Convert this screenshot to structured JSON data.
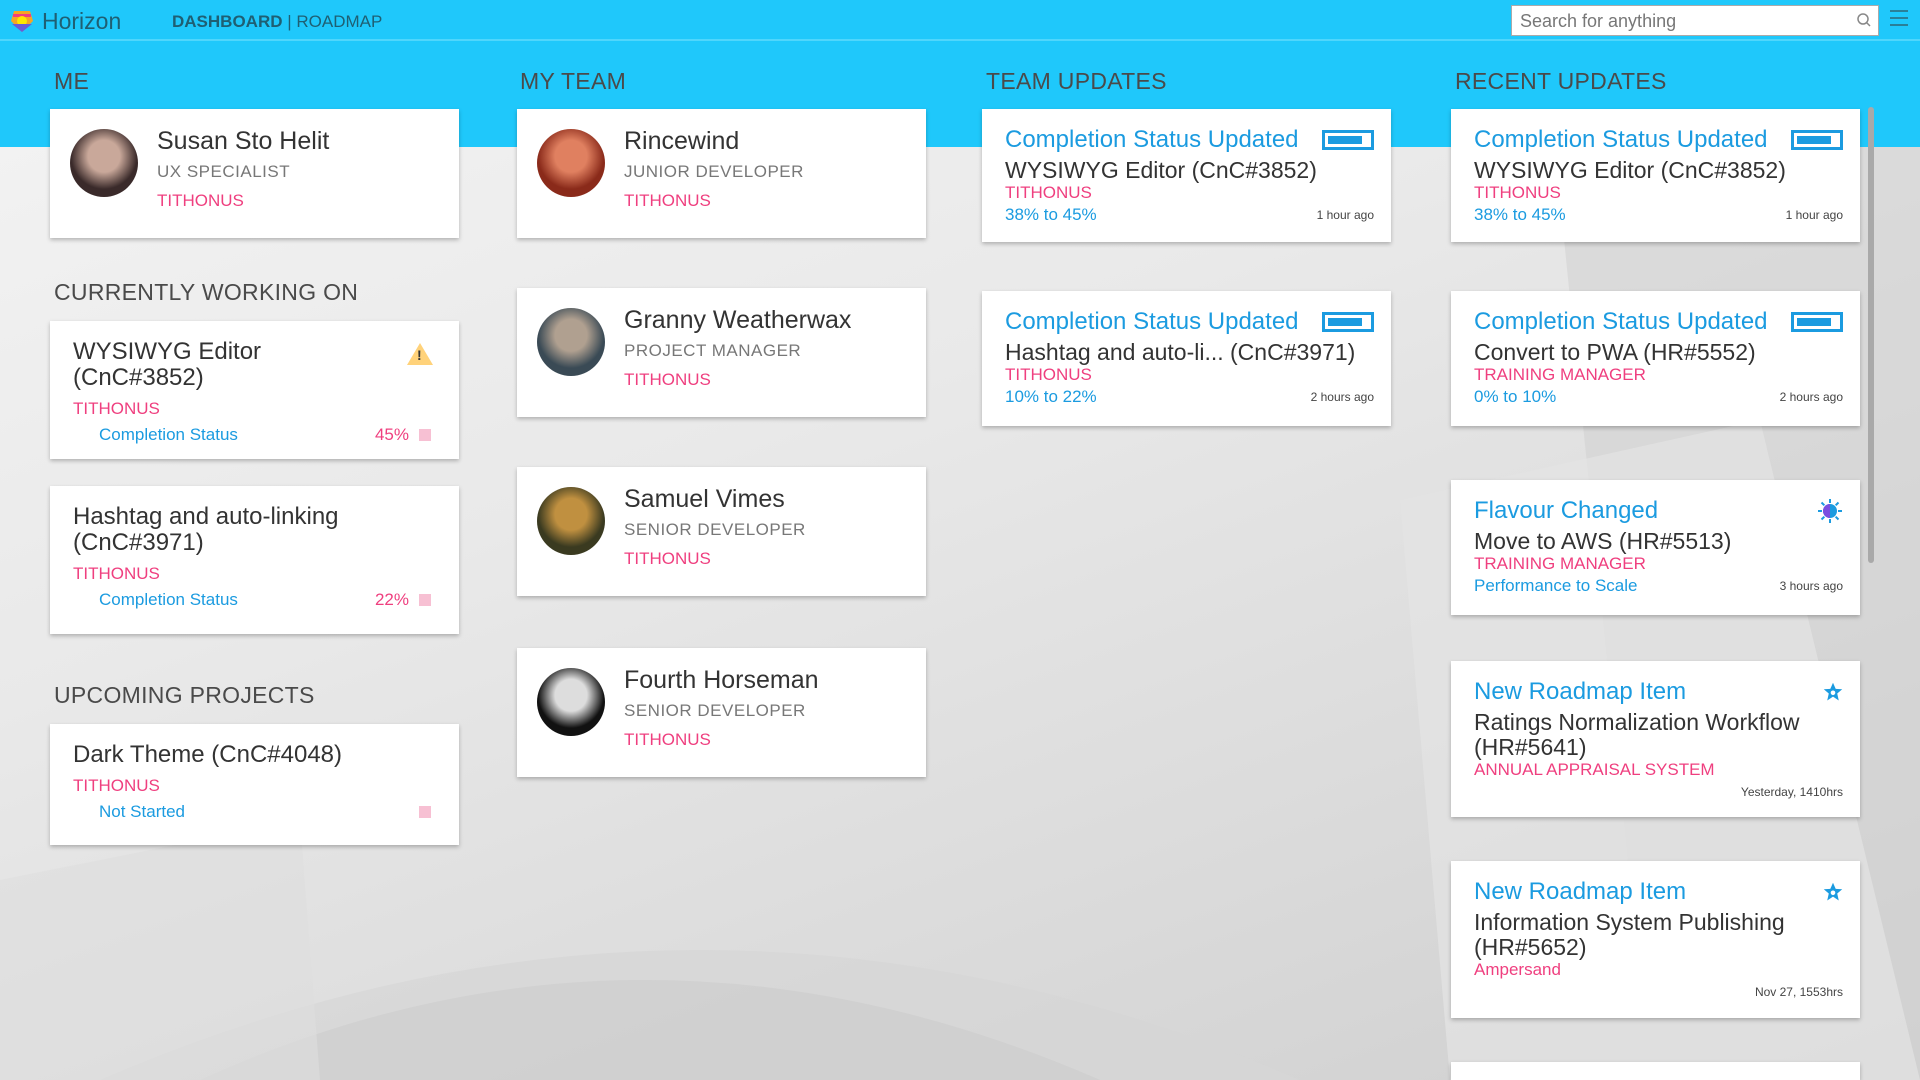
{
  "colors": {
    "header": "#1fc8fb",
    "accent": "#1b9be0",
    "org": "#ef3f7f"
  },
  "header": {
    "brand": "Horizon",
    "nav_active": "DASHBOARD",
    "nav_sep": "|",
    "nav_other": "ROADMAP",
    "search_placeholder": "Search for anything"
  },
  "sections": {
    "me": "ME",
    "team": "MY TEAM",
    "team_updates": "TEAM UPDATES",
    "recent": "RECENT UPDATES",
    "working": "CURRENTLY WORKING ON",
    "upcoming": "UPCOMING PROJECTS"
  },
  "me": {
    "name": "Susan Sto Helit",
    "role": "UX SPECIALIST",
    "org": "TITHONUS"
  },
  "team": [
    {
      "name": "Rincewind",
      "role": "JUNIOR DEVELOPER",
      "org": "TITHONUS"
    },
    {
      "name": "Granny Weatherwax",
      "role": "PROJECT MANAGER",
      "org": "TITHONUS"
    },
    {
      "name": "Samuel Vimes",
      "role": "SENIOR DEVELOPER",
      "org": "TITHONUS"
    },
    {
      "name": "Fourth Horseman",
      "role": "SENIOR DEVELOPER",
      "org": "TITHONUS"
    }
  ],
  "working": [
    {
      "title": "WYSIWYG Editor (CnC#3852)",
      "org": "TITHONUS",
      "label": "Completion Status",
      "percent": "45%",
      "warning": true
    },
    {
      "title": "Hashtag and auto-linking (CnC#3971)",
      "org": "TITHONUS",
      "label": "Completion Status",
      "percent": "22%"
    }
  ],
  "upcoming": [
    {
      "title": "Dark Theme (CnC#4048)",
      "org": "TITHONUS",
      "label": "Not Started"
    }
  ],
  "team_updates": [
    {
      "type": "Completion Status Updated",
      "icon": "battery-icon",
      "item": "WYSIWYG Editor (CnC#3852)",
      "org": "TITHONUS",
      "value": "38% to 45%",
      "time": "1 hour ago"
    },
    {
      "type": "Completion Status Updated",
      "icon": "battery-icon",
      "item": "Hashtag and auto-li... (CnC#3971)",
      "org": "TITHONUS",
      "value": "10% to 22%",
      "time": "2 hours ago"
    }
  ],
  "recent_updates": [
    {
      "type": "Completion Status Updated",
      "icon": "battery-icon",
      "item": "WYSIWYG Editor (CnC#3852)",
      "org": "TITHONUS",
      "value": "38% to 45%",
      "time": "1 hour ago"
    },
    {
      "type": "Completion Status Updated",
      "icon": "battery-icon",
      "item": "Convert to PWA (HR#5552)",
      "org": "TRAINING MANAGER",
      "value": "0% to 10%",
      "time": "2 hours ago"
    },
    {
      "type": "Flavour Changed",
      "icon": "sun-icon",
      "item": "Move to AWS (HR#5513)",
      "org": "TRAINING MANAGER",
      "value": "Performance to Scale",
      "time": "3 hours ago"
    },
    {
      "type": "New Roadmap Item",
      "icon": "star-icon",
      "item": "Ratings Normalization Workflow (HR#5641)",
      "org": "ANNUAL APPRAISAL SYSTEM",
      "value": "",
      "time": "Yesterday, 1410hrs"
    },
    {
      "type": "New Roadmap Item",
      "icon": "star-icon",
      "item": "Information System Publishing (HR#5652)",
      "org": "Ampersand",
      "value": "",
      "time": "Nov 27, 1553hrs"
    }
  ]
}
